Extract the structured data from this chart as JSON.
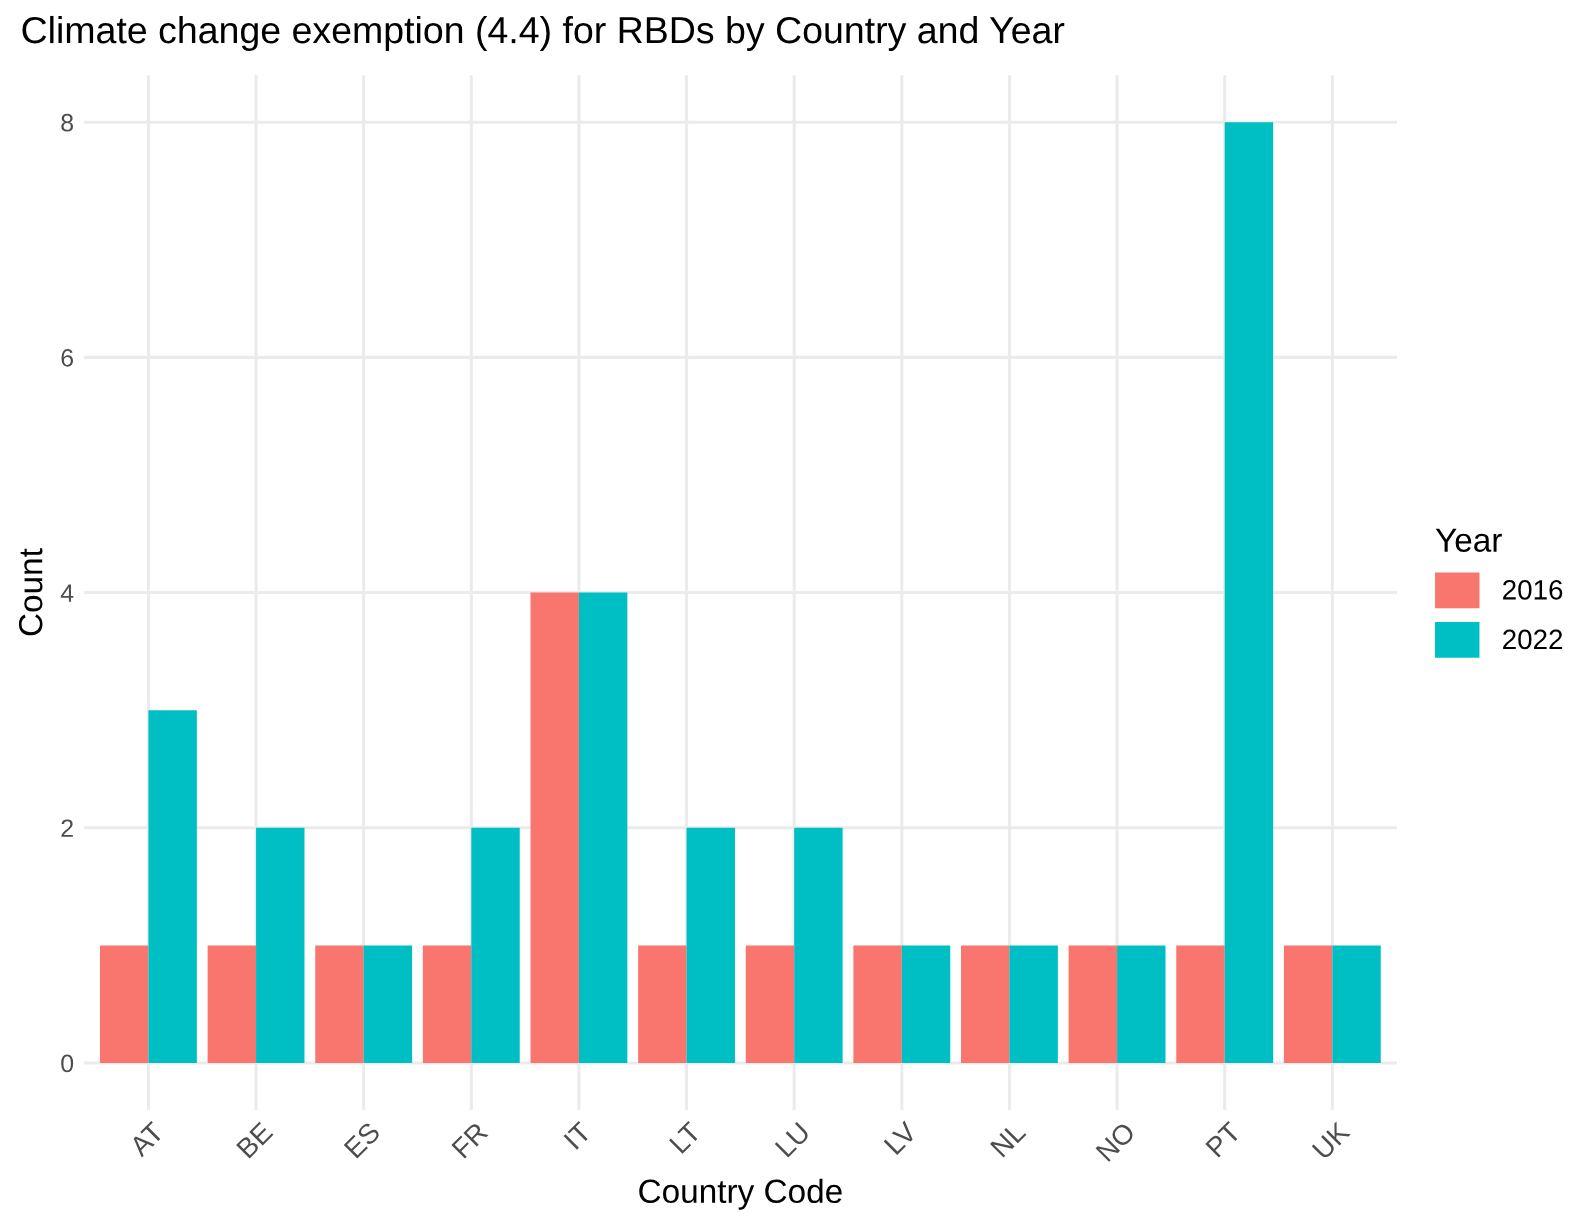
{
  "chart_data": {
    "type": "bar",
    "title": "Climate change exemption (4.4) for RBDs by Country and Year",
    "xlabel": "Country Code",
    "ylabel": "Count",
    "legend_title": "Year",
    "categories": [
      "AT",
      "BE",
      "ES",
      "FR",
      "IT",
      "LT",
      "LU",
      "LV",
      "NL",
      "NO",
      "PT",
      "UK"
    ],
    "series": [
      {
        "name": "2016",
        "color": "#f8766d",
        "values": [
          1,
          1,
          1,
          1,
          4,
          1,
          1,
          1,
          1,
          1,
          1,
          1
        ]
      },
      {
        "name": "2022",
        "color": "#00bfc4",
        "values": [
          3,
          2,
          1,
          2,
          4,
          2,
          2,
          1,
          1,
          1,
          8,
          1
        ]
      }
    ],
    "ylim": [
      -0.4,
      8.4
    ],
    "yticks": [
      0,
      2,
      4,
      6,
      8
    ],
    "grid": true,
    "legend": "right"
  }
}
